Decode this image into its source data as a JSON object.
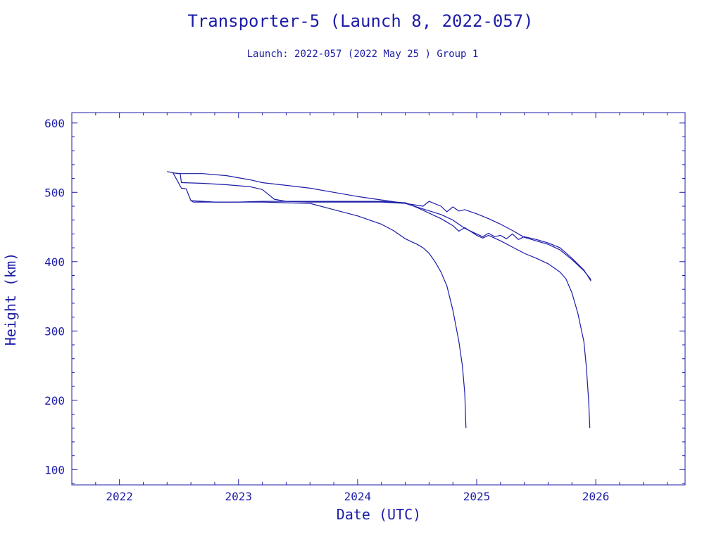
{
  "chart_data": {
    "type": "line",
    "title": "Transporter-5 (Launch 8, 2022-057)",
    "subtitle": "Launch: 2022-057  (2022 May 25 )  Group 1",
    "xlabel": "Date (UTC)",
    "ylabel": "Height (km)",
    "xlim": [
      2021.6,
      2026.75
    ],
    "ylim": [
      78,
      615
    ],
    "x_ticks": [
      2022,
      2023,
      2024,
      2025,
      2026
    ],
    "y_ticks": [
      100,
      200,
      300,
      400,
      500,
      600
    ],
    "grid": false,
    "legend": "none",
    "color": "#1c1ca8",
    "series": [
      {
        "values": [
          [
            2022.4,
            530
          ],
          [
            2022.45,
            528
          ],
          [
            2022.5,
            527
          ],
          [
            2022.7,
            527
          ],
          [
            2022.9,
            524
          ],
          [
            2023.0,
            521
          ],
          [
            2023.1,
            518
          ],
          [
            2023.2,
            514
          ],
          [
            2023.4,
            510
          ],
          [
            2023.6,
            506
          ],
          [
            2023.8,
            500
          ],
          [
            2024.0,
            494
          ],
          [
            2024.2,
            489
          ],
          [
            2024.4,
            484
          ],
          [
            2024.55,
            480
          ],
          [
            2024.6,
            487
          ],
          [
            2024.7,
            480
          ],
          [
            2024.75,
            472
          ],
          [
            2024.8,
            479
          ],
          [
            2024.85,
            473
          ],
          [
            2024.9,
            475
          ],
          [
            2025.0,
            469
          ],
          [
            2025.1,
            462
          ],
          [
            2025.2,
            454
          ],
          [
            2025.3,
            445
          ],
          [
            2025.4,
            435
          ],
          [
            2025.5,
            430
          ],
          [
            2025.6,
            425
          ],
          [
            2025.7,
            417
          ],
          [
            2025.8,
            403
          ],
          [
            2025.9,
            387
          ],
          [
            2025.96,
            374
          ]
        ]
      },
      {
        "values": [
          [
            2022.45,
            528
          ],
          [
            2022.51,
            527
          ],
          [
            2022.52,
            514
          ],
          [
            2022.7,
            513
          ],
          [
            2022.9,
            511
          ],
          [
            2023.1,
            508
          ],
          [
            2023.2,
            504
          ],
          [
            2023.3,
            490
          ],
          [
            2023.4,
            487
          ],
          [
            2023.6,
            486
          ],
          [
            2023.8,
            486
          ],
          [
            2024.0,
            486
          ],
          [
            2024.2,
            486
          ],
          [
            2024.4,
            484
          ],
          [
            2024.55,
            476
          ],
          [
            2024.7,
            468
          ],
          [
            2024.8,
            460
          ],
          [
            2024.9,
            448
          ],
          [
            2025.0,
            440
          ],
          [
            2025.05,
            436
          ],
          [
            2025.1,
            441
          ],
          [
            2025.15,
            436
          ],
          [
            2025.2,
            438
          ],
          [
            2025.25,
            433
          ],
          [
            2025.3,
            440
          ],
          [
            2025.35,
            432
          ],
          [
            2025.4,
            436
          ],
          [
            2025.5,
            432
          ],
          [
            2025.6,
            427
          ],
          [
            2025.7,
            420
          ],
          [
            2025.8,
            405
          ],
          [
            2025.9,
            388
          ],
          [
            2025.96,
            372
          ]
        ]
      },
      {
        "values": [
          [
            2022.45,
            528
          ],
          [
            2022.52,
            506
          ],
          [
            2022.56,
            505
          ],
          [
            2022.6,
            488
          ],
          [
            2022.62,
            486
          ],
          [
            2022.8,
            486
          ],
          [
            2023.0,
            486
          ],
          [
            2023.2,
            487
          ],
          [
            2023.4,
            487
          ],
          [
            2023.6,
            487
          ],
          [
            2023.8,
            487
          ],
          [
            2024.0,
            487
          ],
          [
            2024.2,
            487
          ],
          [
            2024.4,
            485
          ],
          [
            2024.5,
            478
          ],
          [
            2024.6,
            470
          ],
          [
            2024.7,
            462
          ],
          [
            2024.8,
            452
          ],
          [
            2024.85,
            444
          ],
          [
            2024.9,
            449
          ],
          [
            2025.0,
            438
          ],
          [
            2025.05,
            434
          ],
          [
            2025.1,
            438
          ],
          [
            2025.2,
            430
          ],
          [
            2025.3,
            421
          ],
          [
            2025.4,
            412
          ],
          [
            2025.5,
            405
          ],
          [
            2025.6,
            397
          ],
          [
            2025.7,
            385
          ],
          [
            2025.75,
            375
          ],
          [
            2025.8,
            355
          ],
          [
            2025.85,
            325
          ],
          [
            2025.9,
            285
          ],
          [
            2025.92,
            250
          ],
          [
            2025.94,
            200
          ],
          [
            2025.95,
            160
          ]
        ]
      },
      {
        "values": [
          [
            2022.6,
            488
          ],
          [
            2022.8,
            486
          ],
          [
            2023.0,
            486
          ],
          [
            2023.2,
            486
          ],
          [
            2023.4,
            485
          ],
          [
            2023.6,
            484
          ],
          [
            2023.8,
            475
          ],
          [
            2024.0,
            466
          ],
          [
            2024.1,
            460
          ],
          [
            2024.2,
            454
          ],
          [
            2024.3,
            445
          ],
          [
            2024.4,
            433
          ],
          [
            2024.5,
            425
          ],
          [
            2024.55,
            420
          ],
          [
            2024.6,
            412
          ],
          [
            2024.65,
            400
          ],
          [
            2024.7,
            385
          ],
          [
            2024.75,
            365
          ],
          [
            2024.8,
            330
          ],
          [
            2024.85,
            285
          ],
          [
            2024.88,
            250
          ],
          [
            2024.9,
            210
          ],
          [
            2024.91,
            160
          ]
        ]
      }
    ]
  }
}
